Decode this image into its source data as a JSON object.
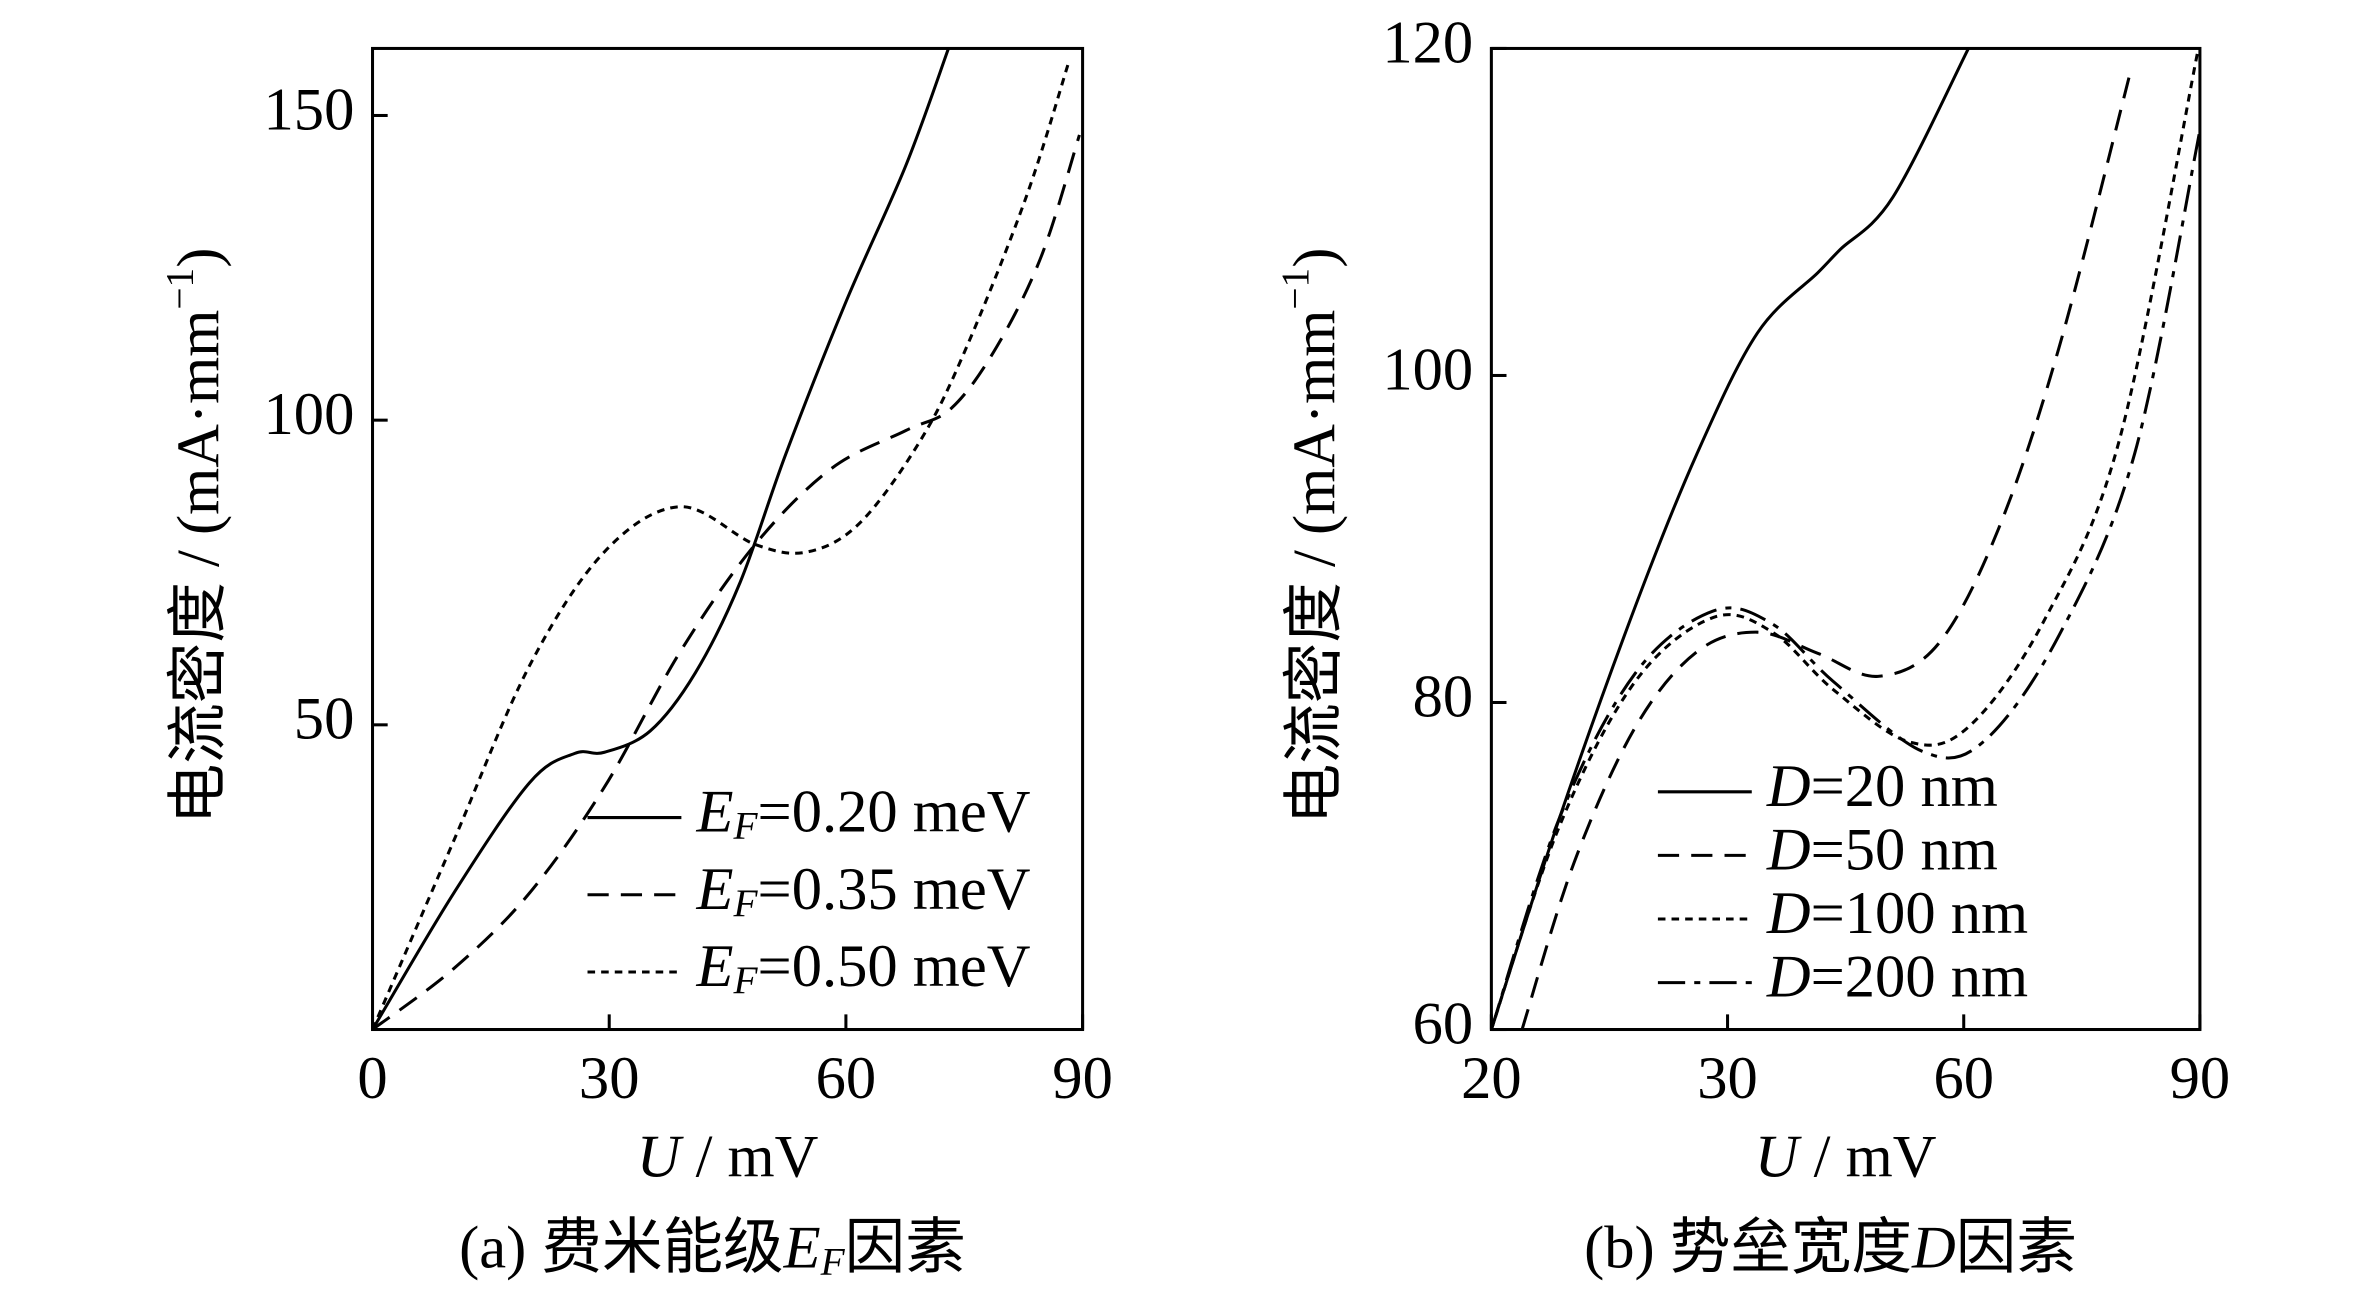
{
  "chart_data": [
    {
      "type": "line",
      "x_label": [
        "U",
        " / mV"
      ],
      "y_label": [
        "电流密度 / (mA·mm",
        "−1",
        ")"
      ],
      "caption": [
        "(a) 费米能级",
        "E",
        "F",
        "因素"
      ],
      "xlim": [
        0,
        90
      ],
      "xticks": [
        0,
        30,
        60,
        90
      ],
      "ylim": [
        0,
        161
      ],
      "yticks": [
        50,
        100,
        150
      ],
      "series": [
        {
          "name": [
            "E",
            "F",
            "=0.20 meV"
          ],
          "color": "#000000",
          "linestyle": "solid",
          "x": [
            0,
            10.3,
            19.9,
            25.6,
            29.4,
            35.2,
            40.9,
            46.6,
            52.4,
            60,
            67.6,
            73
          ],
          "values": [
            0,
            22.4,
            40.5,
            45.3,
            45.5,
            49,
            58.5,
            73.4,
            94.5,
            119.4,
            141.8,
            161
          ]
        },
        {
          "name": [
            "E",
            "F",
            "=0.35 meV"
          ],
          "color": "#000000",
          "linestyle": "dashed",
          "x": [
            0,
            10.3,
            19.9,
            29.4,
            39,
            48.5,
            58.1,
            67.6,
            73.4,
            79.1,
            84.8,
            89.6
          ],
          "values": [
            0,
            10,
            22.4,
            39.8,
            62,
            79.6,
            92,
            98.3,
            102,
            112,
            127,
            146.8
          ]
        },
        {
          "name": [
            "E",
            "F",
            "=0.50 meV"
          ],
          "color": "#000000",
          "linestyle": "dotted",
          "x": [
            0,
            10.3,
            19.9,
            29.4,
            39,
            48.5,
            55.2,
            61.9,
            69.6,
            75.3,
            82.9,
            88.3
          ],
          "values": [
            0,
            31,
            59.7,
            78.4,
            85.8,
            79.6,
            78.4,
            83.3,
            97,
            112,
            136.8,
            159
          ]
        }
      ]
    },
    {
      "type": "line",
      "x_label": [
        "U",
        " / mV"
      ],
      "y_label": [
        "电流密度 / (mA·mm",
        "−1",
        ")"
      ],
      "caption": [
        "(b) 势垒宽度",
        "D",
        "因素"
      ],
      "xlim": [
        20,
        90
      ],
      "xticks": [
        20,
        30,
        60,
        90
      ],
      "ylim": [
        60,
        120
      ],
      "yticks": [
        60,
        80,
        100,
        120
      ],
      "series": [
        {
          "name": [
            "D",
            "=20 nm"
          ],
          "color": "#000000",
          "linestyle": "solid",
          "x": [
            20,
            22.9,
            26.1,
            28.7,
            33.8,
            41.5,
            44.3,
            51,
            60.6
          ],
          "values": [
            60,
            73,
            85.9,
            95.2,
            102.6,
            106.3,
            107.7,
            110.9,
            120
          ]
        },
        {
          "name": [
            "D",
            "=50 nm"
          ],
          "color": "#000000",
          "linestyle": "dashed",
          "x": [
            21.3,
            23.5,
            26.1,
            28.7,
            33.8,
            41.5,
            49.1,
            56.8,
            64.4,
            72.1,
            81.3
          ],
          "values": [
            60,
            70.2,
            78.5,
            83.1,
            84.3,
            83,
            81.6,
            83.6,
            90.6,
            101.7,
            118.8
          ]
        },
        {
          "name": [
            "D",
            "=100 nm"
          ],
          "color": "#000000",
          "linestyle": "dotted",
          "x": [
            20,
            22.9,
            26.1,
            29.4,
            35.7,
            43.4,
            53,
            60.6,
            70.2,
            79.8,
            89.8
          ],
          "values": [
            60,
            72.5,
            81.3,
            85.2,
            84.3,
            80.8,
            77.6,
            78.5,
            85,
            96.1,
            120
          ]
        },
        {
          "name": [
            "D",
            "=200 nm"
          ],
          "color": "#000000",
          "linestyle": "dashdot",
          "x": [
            20,
            22.9,
            26.1,
            29.4,
            35.7,
            43.4,
            54.8,
            62.5,
            72.1,
            81.7,
            90
          ],
          "values": [
            60,
            73,
            81.8,
            85.6,
            84.8,
            81.3,
            77,
            77.6,
            84.1,
            95.2,
            115
          ]
        }
      ]
    }
  ]
}
